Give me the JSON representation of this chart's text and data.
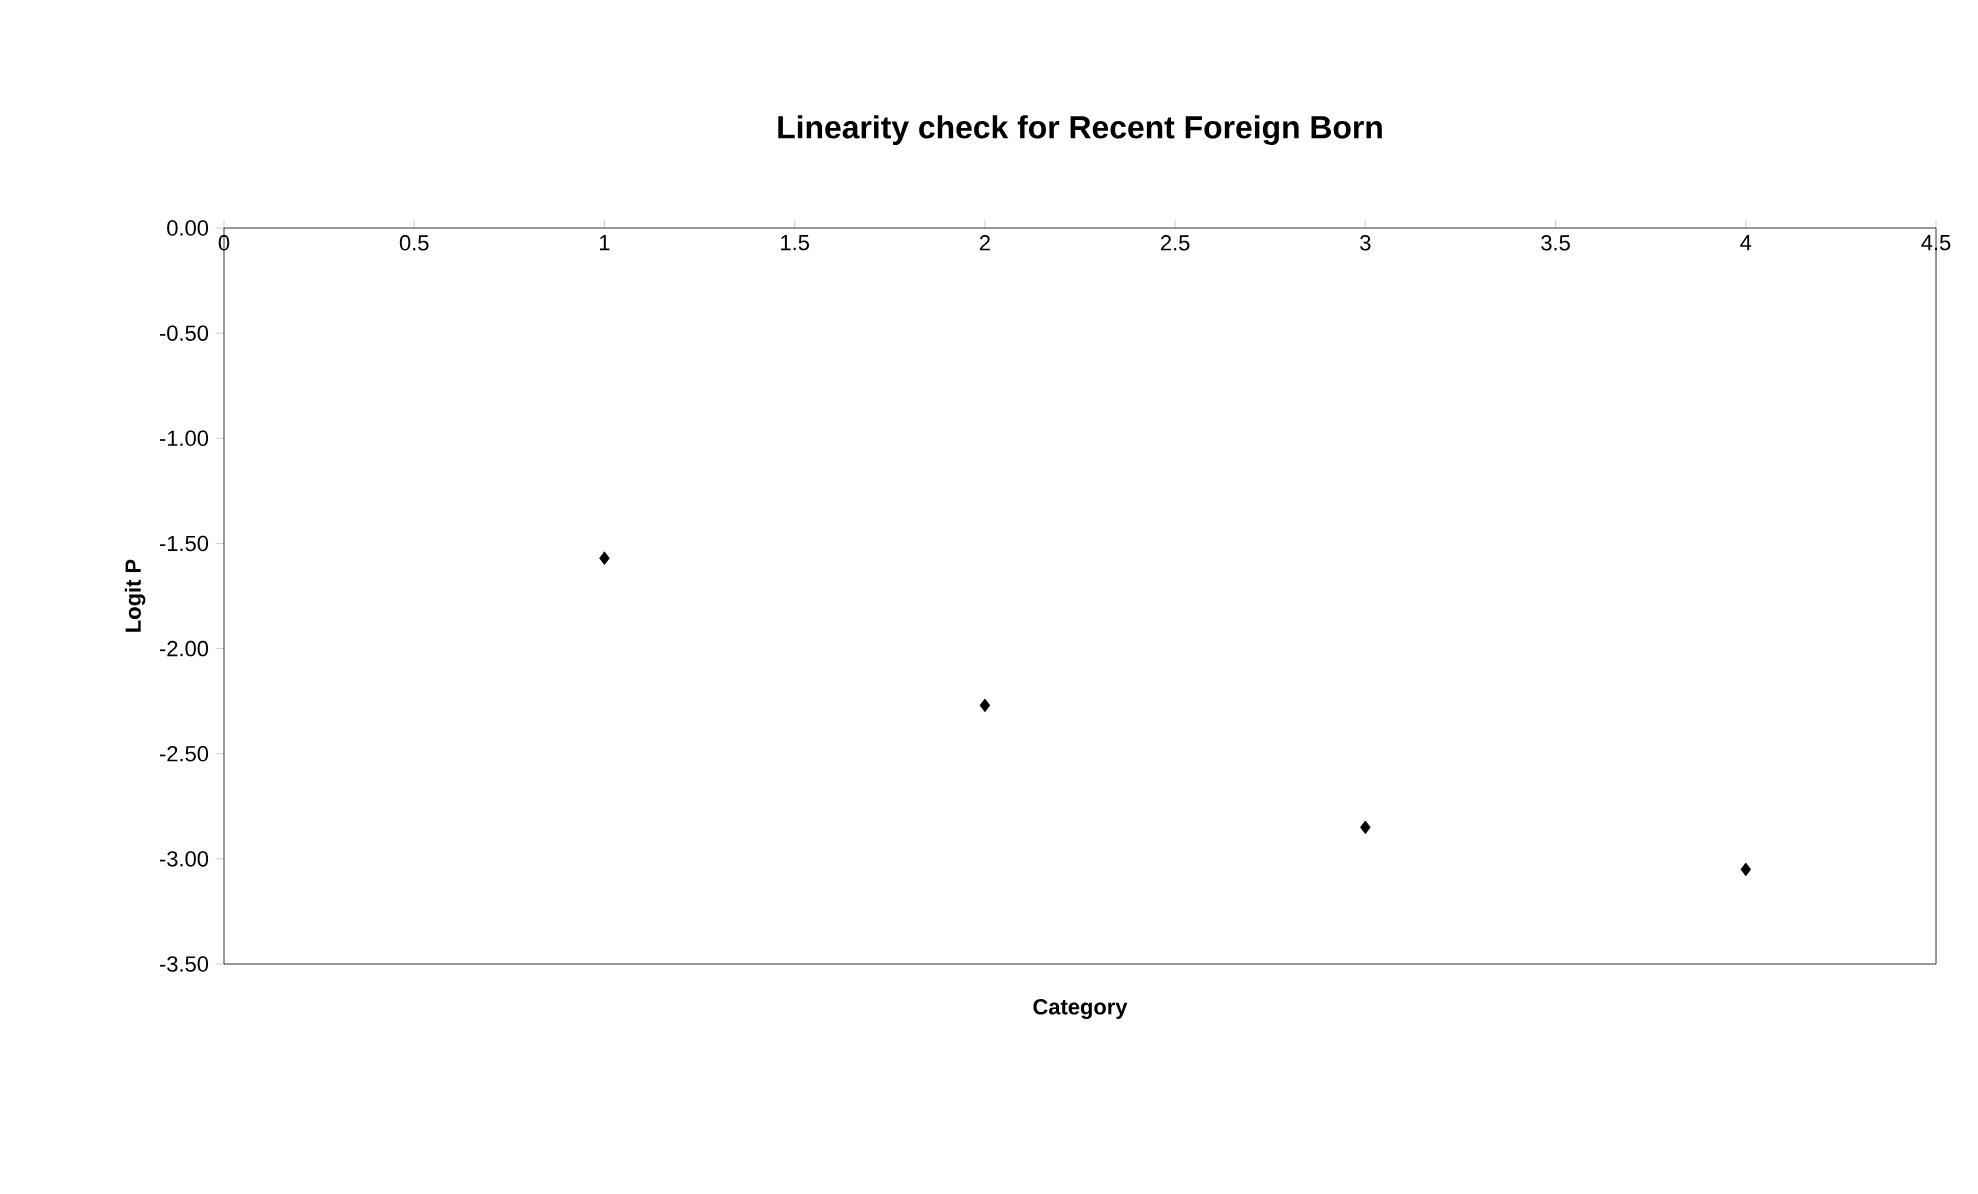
{
  "chart_data": {
    "type": "scatter",
    "title": "Linearity check for Recent Foreign Born",
    "xlabel": "Category",
    "ylabel": "Logit P",
    "x": [
      1,
      2,
      3,
      4
    ],
    "series": [
      {
        "color": "#000000",
        "values": [
          -1.57,
          -2.27,
          -2.85,
          -3.05
        ]
      }
    ],
    "xlim": [
      0,
      4.5
    ],
    "xticks": [
      0,
      0.5,
      1,
      1.5,
      2,
      2.5,
      3,
      3.5,
      4,
      4.5
    ],
    "ylim": [
      -3.5,
      0
    ],
    "yticks": [
      {
        "value": -3.5,
        "label": "-3.50"
      },
      {
        "value": -3.0,
        "label": "-3.00"
      },
      {
        "value": -2.5,
        "label": "-2.50"
      },
      {
        "value": -2.0,
        "label": "-2.00"
      },
      {
        "value": -1.5,
        "label": "-1.50"
      },
      {
        "value": -1.0,
        "label": "-1.00"
      },
      {
        "value": -0.5,
        "label": "-0.50"
      },
      {
        "value": 0,
        "label": "0.00"
      }
    ],
    "grid": false,
    "marker": "diamond"
  }
}
